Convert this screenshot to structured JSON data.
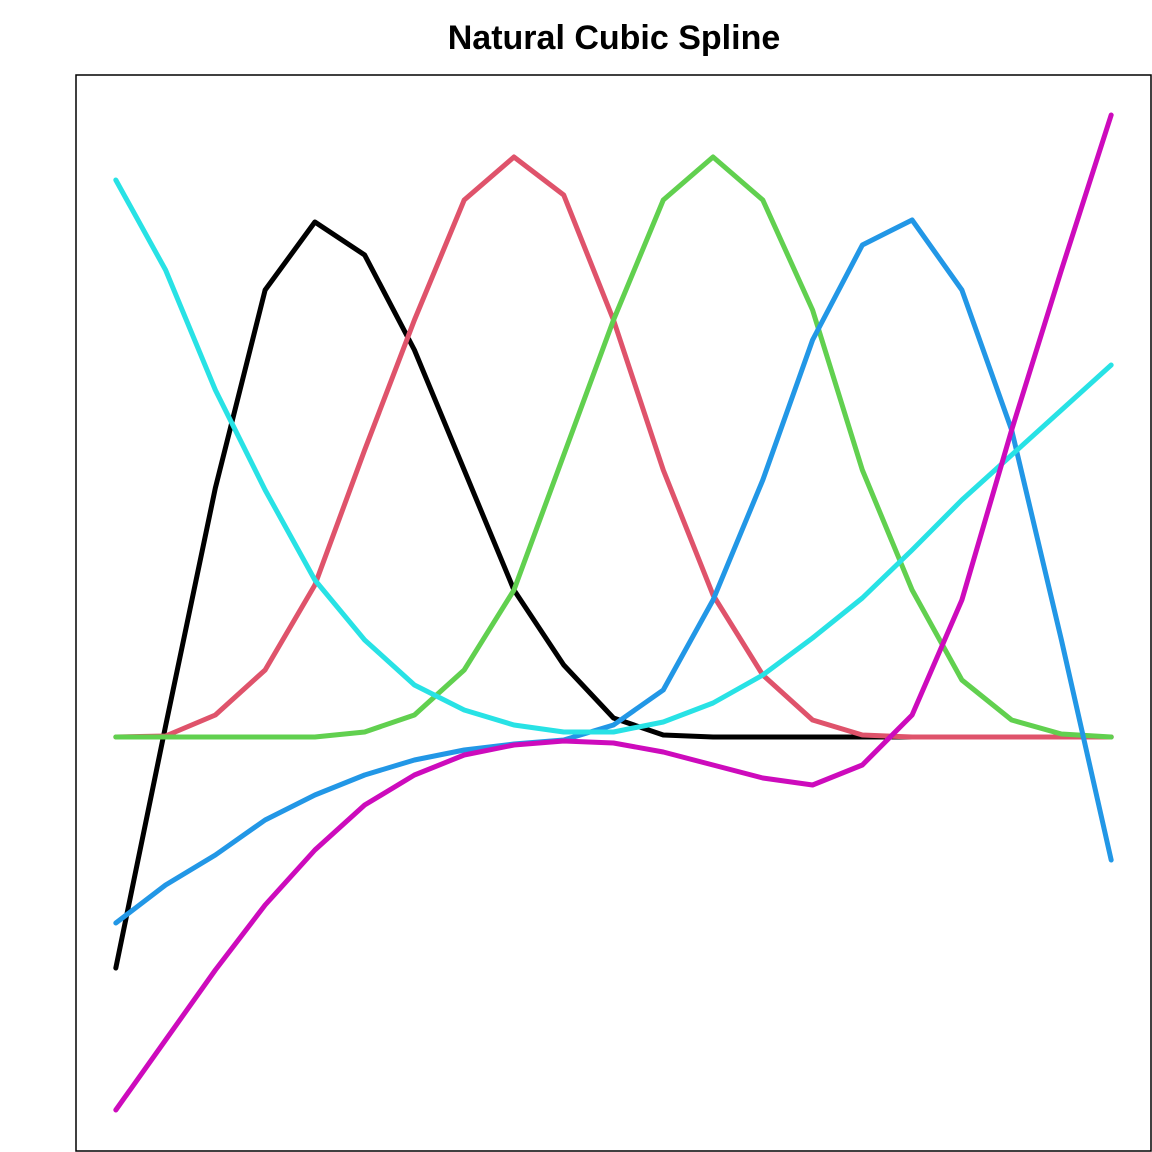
{
  "chart_data": {
    "type": "line",
    "title": "Natural Cubic Spline",
    "x": [
      0,
      0.05,
      0.1,
      0.15,
      0.2,
      0.25,
      0.3,
      0.35,
      0.4,
      0.45,
      0.5,
      0.55,
      0.6,
      0.65,
      0.7,
      0.75,
      0.8,
      0.85,
      0.9,
      0.95,
      1
    ],
    "xlim": [
      -0.04,
      1.04
    ],
    "ylim": [
      -0.414,
      0.662
    ],
    "series": [
      {
        "color": "#000000",
        "values": [
          -0.231,
          0.011,
          0.249,
          0.447,
          0.515,
          0.482,
          0.387,
          0.267,
          0.147,
          0.072,
          0.019,
          0.002,
          0,
          0,
          0,
          0,
          0,
          0,
          0,
          0,
          0
        ]
      },
      {
        "color": "#DF536B",
        "values": [
          0,
          0.001,
          0.022,
          0.067,
          0.152,
          0.287,
          0.417,
          0.537,
          0.58,
          0.542,
          0.417,
          0.267,
          0.142,
          0.062,
          0.017,
          0.002,
          0,
          0,
          0,
          0,
          0
        ]
      },
      {
        "color": "#61D04F",
        "values": [
          0,
          0,
          0,
          0,
          0,
          0.005,
          0.022,
          0.067,
          0.147,
          0.282,
          0.417,
          0.537,
          0.58,
          0.537,
          0.427,
          0.267,
          0.147,
          0.057,
          0.017,
          0.003,
          0
        ]
      },
      {
        "color": "#2297E6",
        "values": [
          -0.186,
          -0.148,
          -0.118,
          -0.083,
          -0.058,
          -0.038,
          -0.023,
          -0.013,
          -0.007,
          -0.003,
          0.012,
          0.047,
          0.137,
          0.257,
          0.397,
          0.492,
          0.517,
          0.447,
          0.307,
          0.097,
          -0.123
        ]
      },
      {
        "color": "#28E2E5",
        "values": [
          0.557,
          0.467,
          0.347,
          0.247,
          0.157,
          0.097,
          0.052,
          0.027,
          0.012,
          0.005,
          0.005,
          0.015,
          0.034,
          0.062,
          0.099,
          0.139,
          0.187,
          0.237,
          0.282,
          0.327,
          0.372
        ]
      },
      {
        "color": "#CD0BBC",
        "values": [
          -0.373,
          -0.303,
          -0.233,
          -0.168,
          -0.113,
          -0.068,
          -0.038,
          -0.018,
          -0.008,
          -0.004,
          -0.006,
          -0.015,
          -0.028,
          -0.041,
          -0.048,
          -0.028,
          0.022,
          0.137,
          0.307,
          0.467,
          0.622
        ]
      }
    ]
  }
}
